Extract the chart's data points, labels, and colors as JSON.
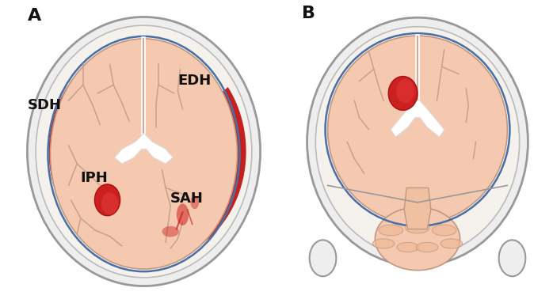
{
  "background_color": "#ffffff",
  "label_A": "A",
  "label_B": "B",
  "label_SDH": "SDH",
  "label_EDH": "EDH",
  "label_IPH": "IPH",
  "label_SAH": "SAH",
  "label_fontsize": 13,
  "panel_label_fontsize": 16,
  "skull_line_color": "#888888",
  "dura_blue_color": "#4a6fa5",
  "brain_base_color": "#f5c9b0",
  "blood_color": "#c42020",
  "iph_color": "#cc2020",
  "ventricle_color": "#ffffff",
  "sulci_color": "#c8a090",
  "text_color": "#111111"
}
